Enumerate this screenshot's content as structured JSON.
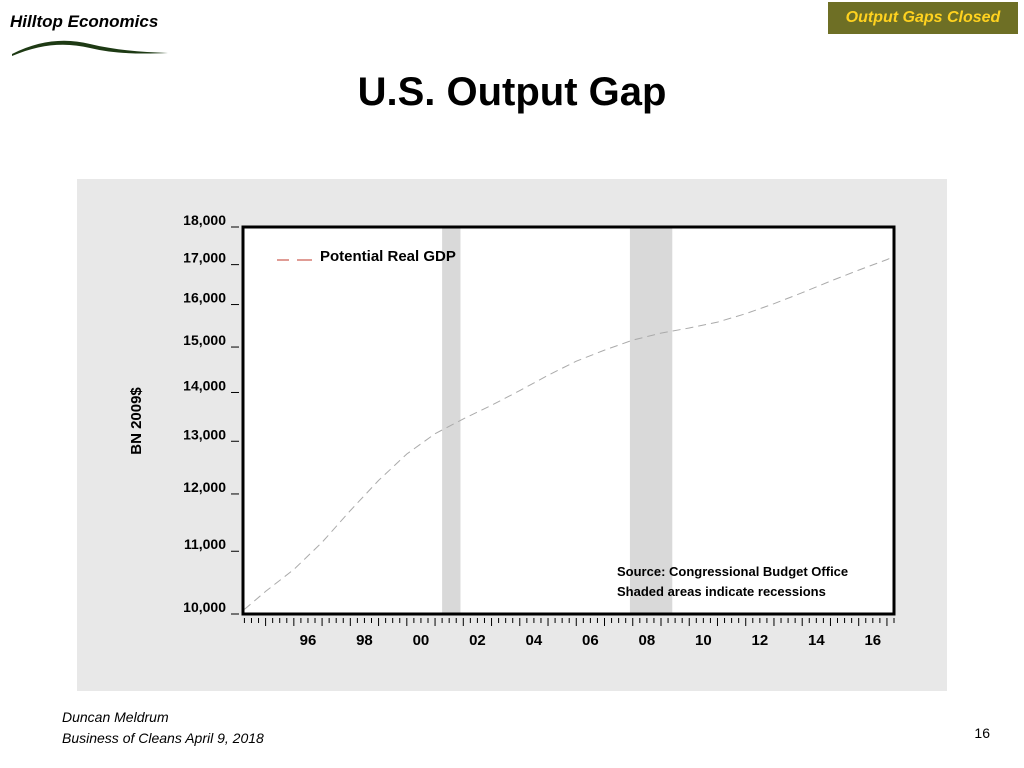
{
  "logo": {
    "text": "Hilltop Economics"
  },
  "badge": {
    "label": "Output Gaps Closed"
  },
  "slide_title": "U.S. Output Gap",
  "footer": {
    "author": "Duncan Meldrum",
    "event": "Business of Cleans April 9, 2018",
    "page_number": "16"
  },
  "colors": {
    "badge_bg": "#6e6f25",
    "badge_text": "#ffd21f",
    "panel_bg": "#e8e8e8",
    "recession_shade": "#d9d9d9",
    "series_line": "#aaaaaa",
    "legend_dash": "#c0392b"
  },
  "chart_data": {
    "type": "line",
    "title": "",
    "ylabel": "BN 2009$",
    "xlabel": "",
    "y_scale": "log",
    "ylim": [
      10000,
      18000
    ],
    "xlim": [
      1994.2,
      2017.25
    ],
    "y_ticks": [
      10000,
      11000,
      12000,
      13000,
      14000,
      15000,
      16000,
      17000,
      18000
    ],
    "y_tick_labels": [
      "10,000",
      "11,000",
      "12,000",
      "13,000",
      "14,000",
      "15,000",
      "16,000",
      "17,000",
      "18,000"
    ],
    "x_ticks": [
      1996,
      1998,
      2000,
      2002,
      2004,
      2006,
      2008,
      2010,
      2012,
      2014,
      2016
    ],
    "x_tick_labels": [
      "96",
      "98",
      "00",
      "02",
      "04",
      "06",
      "08",
      "10",
      "12",
      "14",
      "16"
    ],
    "grid": false,
    "legend": {
      "placement": "top-left",
      "entries": [
        "Potential Real GDP"
      ]
    },
    "annotations": [
      "Source: Congressional Budget Office",
      "Shaded areas indicate recessions"
    ],
    "recessions": [
      {
        "start": 2001.25,
        "end": 2001.9
      },
      {
        "start": 2007.9,
        "end": 2009.4
      }
    ],
    "series": [
      {
        "name": "Potential Real GDP",
        "style": "dashed",
        "x": [
          1994.25,
          1995,
          1996,
          1997,
          1998,
          1999,
          2000,
          2001,
          2002,
          2003,
          2004,
          2005,
          2006,
          2007,
          2008,
          2009,
          2010,
          2011,
          2012,
          2013,
          2014,
          2015,
          2016,
          2017,
          2017.25
        ],
        "y": [
          10070,
          10350,
          10700,
          11150,
          11700,
          12250,
          12750,
          13150,
          13450,
          13730,
          14040,
          14370,
          14680,
          14930,
          15160,
          15320,
          15440,
          15580,
          15780,
          16020,
          16290,
          16580,
          16860,
          17130,
          17210
        ]
      }
    ]
  }
}
